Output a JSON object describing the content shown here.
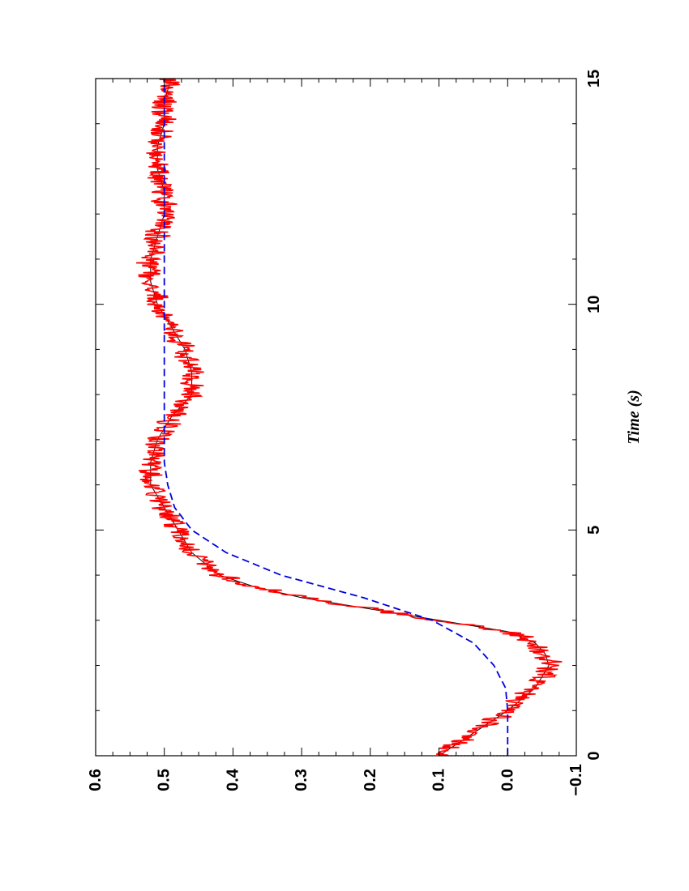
{
  "chart_data": {
    "type": "line",
    "orientation": "rotated 90 degrees counter-clockwise",
    "title": "",
    "xlabel": "Time (s)",
    "ylabel": "",
    "xlim": [
      0,
      15
    ],
    "ylim": [
      -0.1,
      0.6
    ],
    "x_ticks": [
      0,
      5,
      10,
      15
    ],
    "x_tick_labels": [
      "0",
      "5",
      "10",
      "15"
    ],
    "y_ticks": [
      -0.1,
      0.0,
      0.1,
      0.2,
      0.3,
      0.4,
      0.5,
      0.6
    ],
    "y_tick_labels": [
      "−0.1",
      "0.0",
      "0.1",
      "0.2",
      "0.3",
      "0.4",
      "0.5",
      "0.6"
    ],
    "grid": false,
    "legend": "none",
    "series": [
      {
        "style": "noisy solid",
        "color": "#ff0000",
        "x": [
          0.0,
          0.5,
          1.0,
          1.5,
          2.0,
          2.25,
          2.5,
          2.75,
          3.0,
          3.25,
          3.5,
          3.75,
          4.0,
          4.5,
          5.0,
          5.5,
          6.0,
          6.5,
          7.0,
          7.5,
          8.0,
          8.5,
          9.0,
          9.5,
          10.0,
          10.5,
          11.0,
          11.5,
          12.0,
          12.5,
          13.0,
          13.5,
          14.0,
          14.5,
          15.0
        ],
        "y": [
          0.1,
          0.05,
          0.0,
          -0.04,
          -0.06,
          -0.055,
          -0.04,
          0.0,
          0.1,
          0.2,
          0.3,
          0.37,
          0.42,
          0.46,
          0.48,
          0.5,
          0.52,
          0.52,
          0.51,
          0.49,
          0.46,
          0.46,
          0.47,
          0.49,
          0.51,
          0.52,
          0.52,
          0.51,
          0.5,
          0.5,
          0.51,
          0.51,
          0.5,
          0.5,
          0.49
        ]
      },
      {
        "style": "dashed",
        "color": "#0000dd",
        "x": [
          0.0,
          0.5,
          1.0,
          1.5,
          2.0,
          2.5,
          3.0,
          3.5,
          4.0,
          4.5,
          5.0,
          5.5,
          6.0,
          6.5,
          7.0,
          8.0,
          10.0,
          12.0,
          15.0
        ],
        "y": [
          0.0,
          0.0,
          0.0,
          0.003,
          0.02,
          0.05,
          0.11,
          0.21,
          0.33,
          0.41,
          0.46,
          0.485,
          0.495,
          0.5,
          0.5,
          0.5,
          0.5,
          0.5,
          0.5
        ]
      },
      {
        "style": "dotted",
        "color": "#000000",
        "x": [
          0.0,
          0.0
        ],
        "y": [
          0.0,
          0.1
        ]
      }
    ]
  }
}
